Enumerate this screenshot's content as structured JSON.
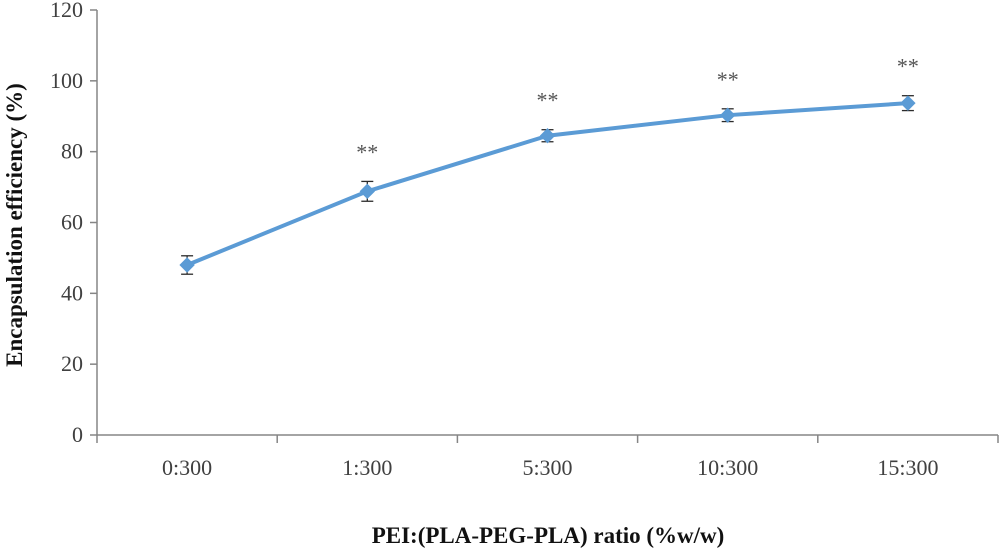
{
  "chart_data": {
    "type": "line",
    "categories": [
      "0:300",
      "1:300",
      "5:300",
      "10:300",
      "15:300"
    ],
    "series": [
      {
        "values": [
          48.0,
          68.8,
          84.5,
          90.3,
          93.7
        ],
        "errors": [
          2.6,
          2.8,
          1.7,
          1.8,
          2.1
        ],
        "color": "#5B9BD5"
      }
    ],
    "annotations": [
      "",
      "**",
      "**",
      "**",
      "**"
    ],
    "xlabel": "PEI:(PLA-PEG-PLA) ratio (%w/w)",
    "ylabel": "Encapsulation efficiency (%)",
    "ylim": [
      0,
      120
    ],
    "yticks": [
      0,
      20,
      40,
      60,
      80,
      100,
      120
    ],
    "grid": false,
    "legend": "none"
  }
}
